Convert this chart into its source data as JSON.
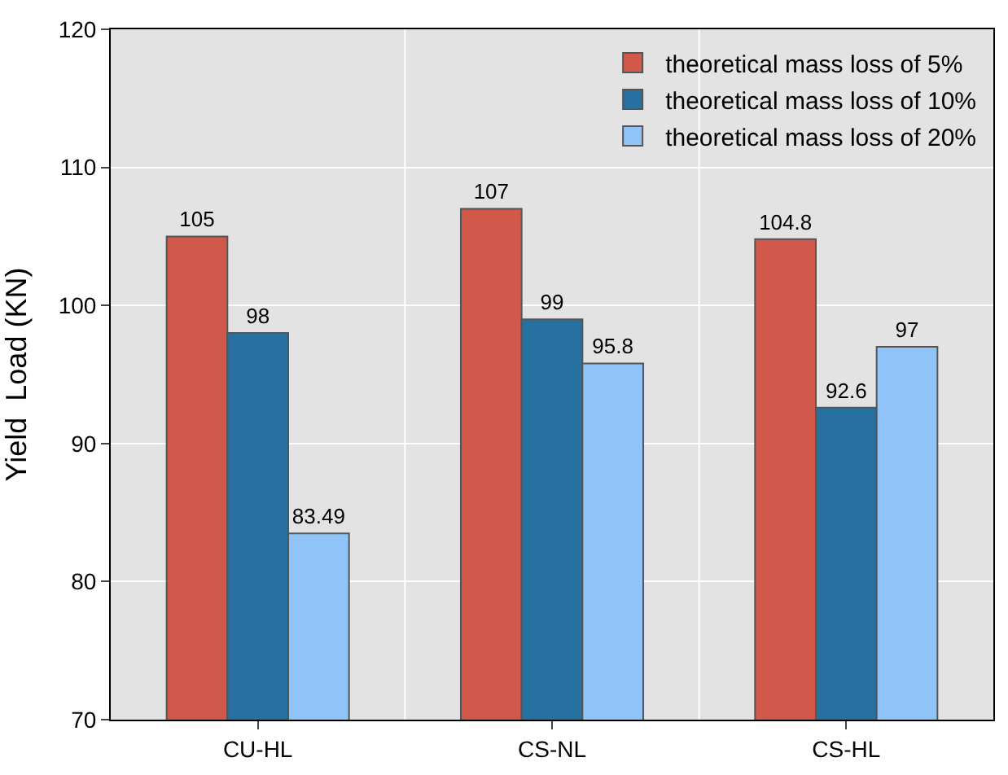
{
  "chart_data": {
    "type": "bar",
    "ylabel": "Yield  Load (KN)",
    "categories": [
      "CU-HL",
      "CS-NL",
      "CS-HL"
    ],
    "series": [
      {
        "name": "theoretical mass loss of 5%",
        "color": "#d0594b",
        "values": [
          105,
          107,
          104.8
        ]
      },
      {
        "name": "theoretical mass loss of 10%",
        "color": "#2771a0",
        "values": [
          98,
          99,
          92.6
        ]
      },
      {
        "name": "theoretical mass loss of 20%",
        "color": "#90c4f8",
        "values": [
          83.49,
          95.8,
          97
        ]
      }
    ],
    "ylim": [
      70,
      120
    ],
    "yticks": [
      70,
      80,
      90,
      100,
      110,
      120
    ],
    "grid": true,
    "legend": "top right",
    "data_labels": true
  }
}
